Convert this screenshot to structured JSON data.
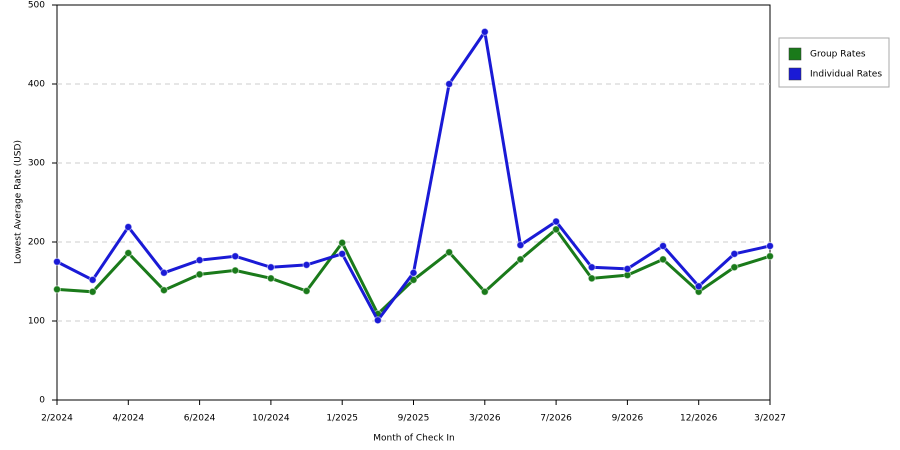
{
  "chart_data": {
    "type": "line",
    "x_label": "Month of Check In",
    "y_label": "Lowest Average Rate (USD)",
    "categories": [
      "2/2024",
      null,
      "4/2024",
      null,
      "6/2024",
      null,
      "10/2024",
      null,
      "1/2025",
      null,
      "9/2025",
      null,
      "3/2026",
      null,
      "7/2026",
      null,
      "9/2026",
      null,
      "12/2026",
      null,
      "3/2027"
    ],
    "series": [
      {
        "name": "Group Rates",
        "color": "#1a7a1a",
        "values": [
          140,
          137,
          186,
          139,
          159,
          164,
          154,
          138,
          199,
          109,
          152,
          187,
          137,
          178,
          216,
          154,
          158,
          178,
          137,
          168,
          182
        ]
      },
      {
        "name": "Individual Rates",
        "color": "#1a1ad6",
        "values": [
          175,
          152,
          219,
          161,
          177,
          182,
          168,
          171,
          185,
          101,
          161,
          400,
          466,
          196,
          226,
          168,
          166,
          195,
          144,
          185,
          195
        ]
      }
    ],
    "ylim": [
      0,
      500
    ],
    "yticks": [
      0,
      100,
      200,
      300,
      400,
      500
    ],
    "grid": true
  }
}
